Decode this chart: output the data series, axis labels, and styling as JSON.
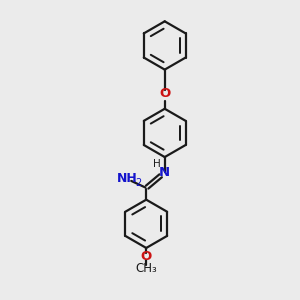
{
  "bg_color": "#ebebeb",
  "bond_color": "#1a1a1a",
  "N_color": "#1414cc",
  "O_color": "#cc1414",
  "line_width": 1.6,
  "font_size": 8.5,
  "figsize": [
    3.0,
    3.0
  ],
  "dpi": 100,
  "xlim": [
    0,
    10
  ],
  "ylim": [
    0,
    10
  ]
}
